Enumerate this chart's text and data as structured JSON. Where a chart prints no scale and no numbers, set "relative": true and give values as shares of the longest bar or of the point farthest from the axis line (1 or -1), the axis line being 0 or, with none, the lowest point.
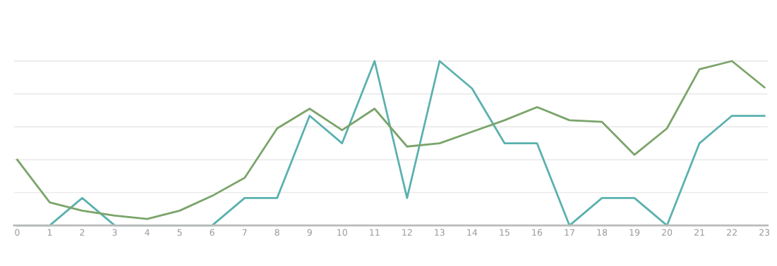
{
  "chart_data": {
    "type": "line",
    "relative": true,
    "categories": [
      "0",
      "1",
      "2",
      "3",
      "4",
      "5",
      "6",
      "7",
      "8",
      "9",
      "10",
      "11",
      "12",
      "13",
      "14",
      "15",
      "16",
      "17",
      "18",
      "19",
      "20",
      "21",
      "22",
      "23"
    ],
    "series": [
      {
        "color": "#5ab1ae",
        "values": [
          0,
          0,
          0.167,
          0,
          0,
          0,
          0,
          0.167,
          0.167,
          0.667,
          0.5,
          1,
          0.167,
          1,
          0.833,
          0.5,
          0.5,
          0,
          0.167,
          0.167,
          0,
          0.5,
          0.667,
          0.667
        ]
      },
      {
        "color": "#7ba46a",
        "values": [
          0.4,
          0.14,
          0.09,
          0.06,
          0.04,
          0.09,
          0.18,
          0.29,
          0.59,
          0.71,
          0.58,
          0.71,
          0.48,
          0.5,
          0.57,
          0.64,
          0.72,
          0.64,
          0.63,
          0.43,
          0.59,
          0.95,
          1.0,
          0.84
        ]
      }
    ],
    "grid": "y",
    "marker": "none",
    "line_style": "solid",
    "tick_labels": "x"
  }
}
